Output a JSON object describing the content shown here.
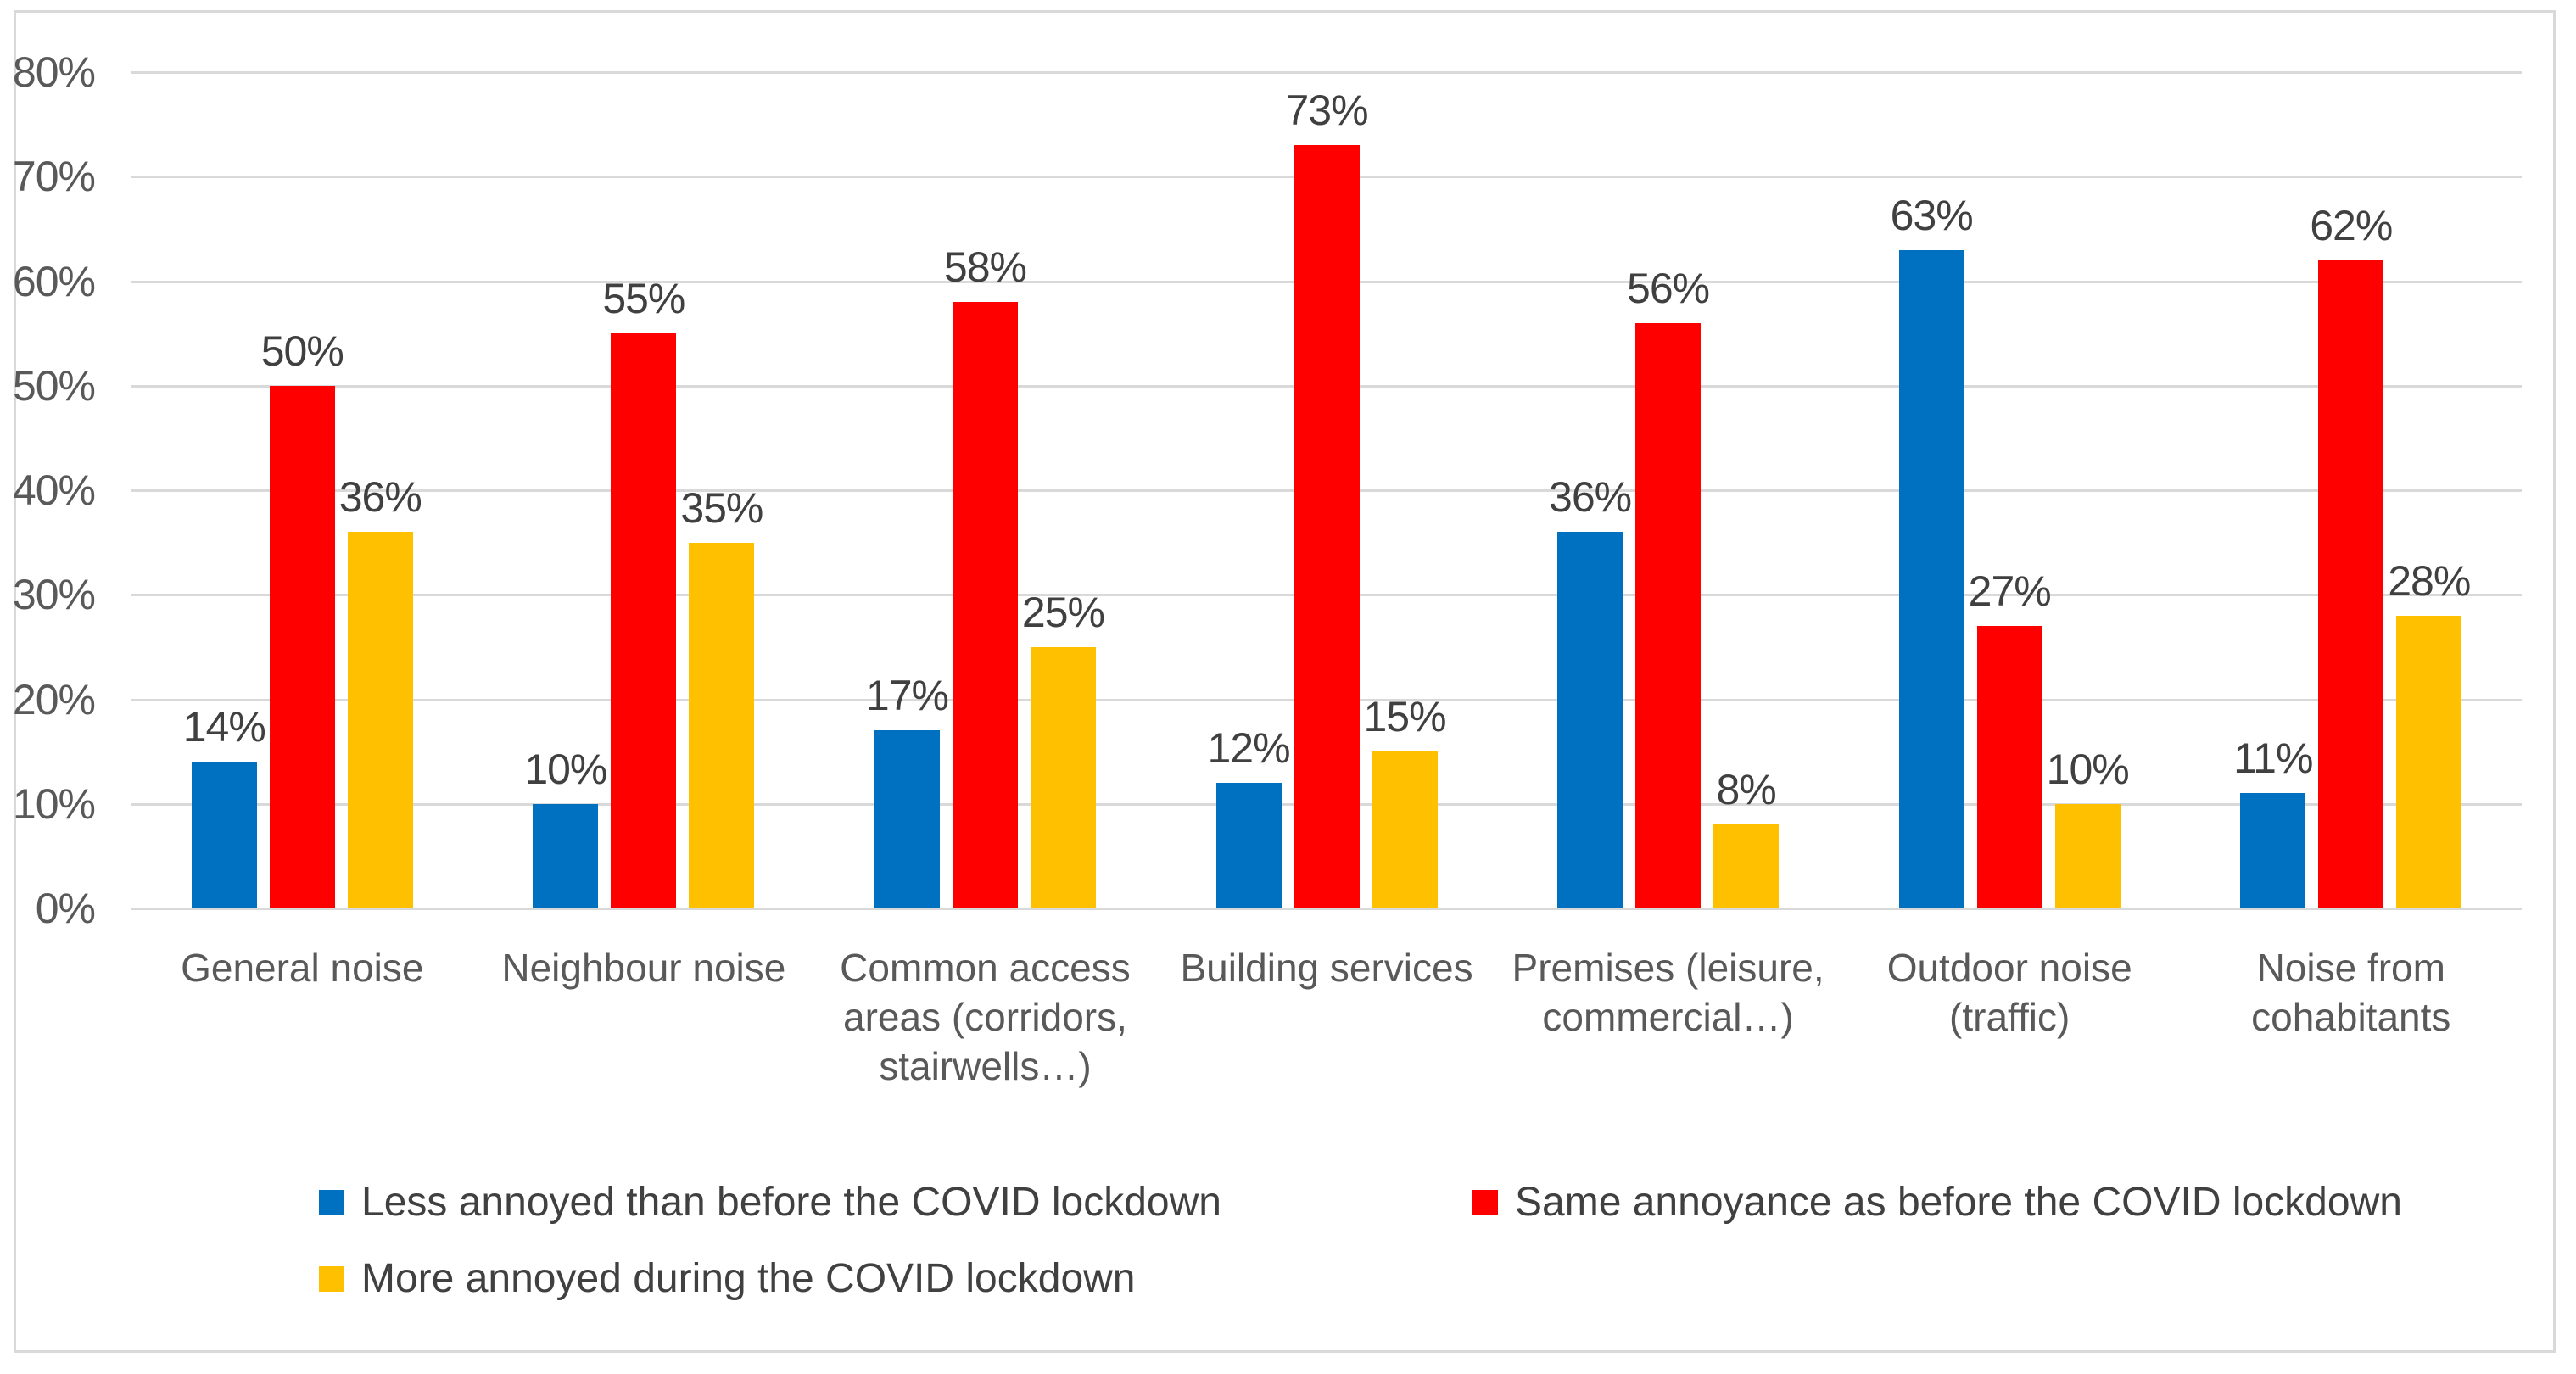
{
  "chart_data": {
    "type": "bar",
    "title": "",
    "xlabel": "",
    "ylabel": "",
    "ylim": [
      0,
      80
    ],
    "y_ticks": [
      "80%",
      "70%",
      "60%",
      "50%",
      "40%",
      "30%",
      "20%",
      "10%",
      "0%"
    ],
    "grid": true,
    "legend_position": "bottom",
    "value_suffix": "%",
    "categories": [
      "General noise",
      "Neighbour noise",
      "Common access areas (corridors, stairwells…)",
      "Building services",
      "Premises (leisure, commercial…)",
      "Outdoor noise (traffic)",
      "Noise from cohabitants"
    ],
    "series": [
      {
        "name": "Less annoyed than before the COVID lockdown",
        "color": "#0070C0",
        "values": [
          14,
          10,
          17,
          12,
          36,
          63,
          11
        ],
        "labels": [
          "14%",
          "10%",
          "17%",
          "12%",
          "36%",
          "63%",
          "11%"
        ]
      },
      {
        "name": "Same annoyance as before the COVID lockdown",
        "color": "#FF0000",
        "values": [
          50,
          55,
          58,
          73,
          56,
          27,
          62
        ],
        "labels": [
          "50%",
          "55%",
          "58%",
          "73%",
          "56%",
          "27%",
          "62%"
        ]
      },
      {
        "name": "More annoyed during the COVID lockdown",
        "color": "#FFC000",
        "values": [
          36,
          35,
          25,
          15,
          8,
          10,
          28
        ],
        "labels": [
          "36%",
          "35%",
          "25%",
          "15%",
          "8%",
          "10%",
          "28%"
        ]
      }
    ],
    "colors": {
      "gridline": "#D9D9D9",
      "frame_border": "#D9D9D9",
      "axis_text": "#595959",
      "data_label_text": "#404040"
    }
  }
}
